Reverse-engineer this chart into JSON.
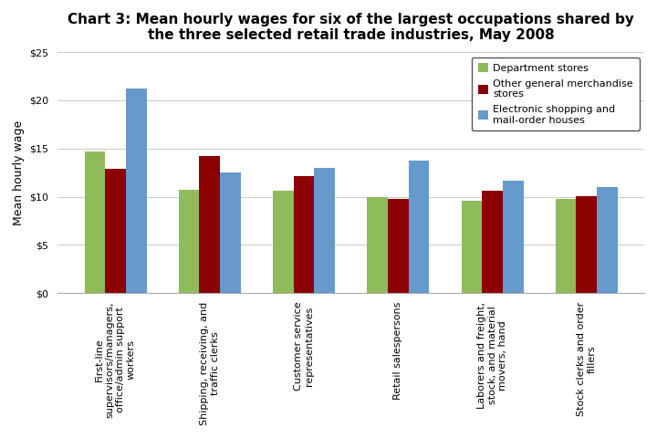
{
  "title": "Chart 3: Mean hourly wages for six of the largest occupations shared by\nthe three selected retail trade industries, May 2008",
  "categories": [
    "First-line\nsupervisors/managers,\noffice/admin support\nworkers",
    "Shipping, receiving, and\ntraffic clerks",
    "Customer service\nrepresentatives",
    "Retail salespersons",
    "Laborers and freight,\nstock, and material\nmovers, hand",
    "Stock clerks and order\nfillers"
  ],
  "series": [
    {
      "name": "Department stores",
      "color": "#8FBC5A",
      "values": [
        14.65,
        10.75,
        10.65,
        9.95,
        9.55,
        9.75
      ]
    },
    {
      "name": "Other general merchandise\nstores",
      "color": "#8B0000",
      "values": [
        12.9,
        14.2,
        12.1,
        9.75,
        10.65,
        10.05
      ]
    },
    {
      "name": "Electronic shopping and\nmail-order houses",
      "color": "#6699CC",
      "values": [
        21.25,
        12.55,
        12.95,
        13.7,
        11.65,
        11.0
      ]
    }
  ],
  "ylabel": "Mean hourly wage",
  "ylim": [
    0,
    25
  ],
  "yticks": [
    0,
    5,
    10,
    15,
    20,
    25
  ],
  "ytick_labels": [
    "$0",
    "$5",
    "$10",
    "$15",
    "$20",
    "$25"
  ],
  "background_color": "#ffffff",
  "grid_color": "#cccccc",
  "title_fontsize": 11,
  "axis_label_fontsize": 9,
  "tick_fontsize": 8,
  "legend_fontsize": 8,
  "bar_width": 0.22
}
